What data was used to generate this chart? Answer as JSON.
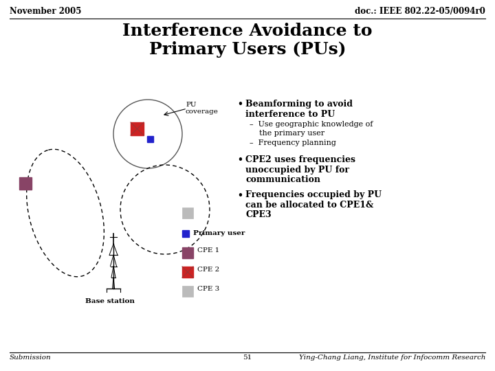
{
  "title_line1": "Interference Avoidance to",
  "title_line2": "Primary Users (PUs)",
  "header_left": "November 2005",
  "header_right": "doc.: IEEE 802.22-05/0094r0",
  "footer_left": "Submission",
  "footer_center": "51",
  "footer_right": "Ying-Chang Liang, Institute for Infocomm Research",
  "bg_color": "#ffffff",
  "bullet1_l1": "Beamforming to avoid",
  "bullet1_l2": "interference to PU",
  "bullet1_sub1_l1": "Use geographic knowledge of",
  "bullet1_sub1_l2": "the primary user",
  "bullet1_sub2": "Frequency planning",
  "bullet2_l1": "CPE2 uses frequencies",
  "bullet2_l2": "unoccupied by PU for",
  "bullet2_l3": "communication",
  "bullet3_l1": "Frequencies occupied by PU",
  "bullet3_l2": "can be allocated to CPE1&",
  "bullet3_l3": "CPE3",
  "legend_primary_user": "Primary user",
  "legend_cpe1": "CPE 1",
  "legend_cpe2": "CPE 2",
  "legend_cpe3": "CPE 3",
  "pu_coverage_label": "PU\ncoverage",
  "base_station_label": "Base station",
  "color_primary_user": "#2222cc",
  "color_cpe1": "#884466",
  "color_cpe2": "#cc2222",
  "color_cpe3": "#bbbbbb",
  "color_title": "#000000",
  "color_header": "#000000"
}
